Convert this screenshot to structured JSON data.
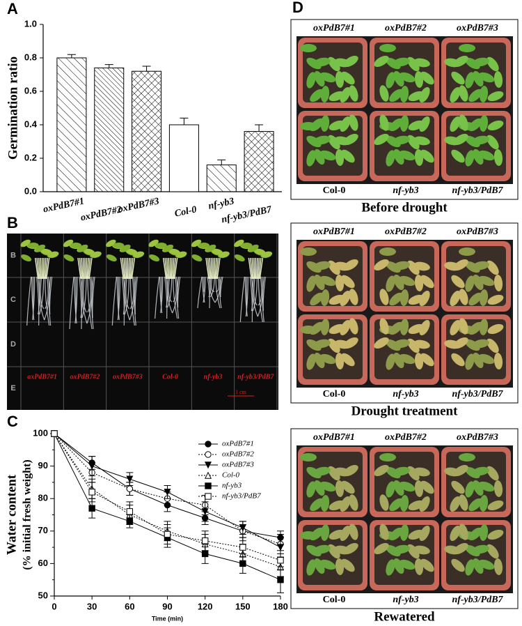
{
  "chart_data": [
    {
      "type": "bar",
      "panel": "A",
      "ylabel": "Germination ratio",
      "categories": [
        "oxPdB7#1",
        "oxPdB7#2",
        "oxPdB7#3",
        "Col-0",
        "nf-yb3",
        "nf-yb3/PdB7"
      ],
      "values": [
        0.8,
        0.74,
        0.72,
        0.4,
        0.16,
        0.36
      ],
      "errors": [
        0.02,
        0.02,
        0.03,
        0.04,
        0.03,
        0.04
      ],
      "patterns": [
        "back-diagonal",
        "back-diagonal-dense",
        "cross",
        "none",
        "back-diagonal",
        "cross"
      ],
      "color": "#000000",
      "ylim": [
        0,
        1
      ],
      "yticks": [
        {
          "value": 0,
          "label": "0.0"
        },
        0.2,
        0.4,
        0.6,
        0.8,
        {
          "value": 1,
          "label": "1.0"
        }
      ]
    },
    {
      "type": "line",
      "panel": "C",
      "ylabel": [
        "Water content",
        "(% initial fresh weight)"
      ],
      "xlabel": "Time (min)",
      "x": [
        0,
        30,
        60,
        90,
        120,
        150,
        180
      ],
      "series": [
        {
          "name": "oxPdB7#1",
          "color": "#000000",
          "marker": "circle",
          "dash": "solid",
          "values": [
            100,
            91,
            83,
            78,
            74,
            70,
            68
          ],
          "errors": [
            0,
            2,
            2,
            2,
            2,
            2,
            2
          ]
        },
        {
          "name": "oxPdB7#2",
          "color": "#000000",
          "marker": "circle-open",
          "dash": "dotted",
          "values": [
            100,
            88,
            83,
            80,
            78,
            70,
            66
          ],
          "errors": [
            0,
            3,
            2,
            2,
            3,
            3,
            3
          ]
        },
        {
          "name": "oxPdB7#3",
          "color": "#000000",
          "marker": "triangle-down",
          "dash": "solid",
          "values": [
            100,
            90,
            86,
            82,
            76,
            71,
            65
          ],
          "errors": [
            0,
            3,
            2,
            2,
            3,
            2,
            3
          ]
        },
        {
          "name": "Col-0",
          "color": "#000000",
          "marker": "triangle-open",
          "dash": "dotted",
          "values": [
            100,
            83,
            75,
            70,
            66,
            63,
            59
          ],
          "errors": [
            0,
            3,
            3,
            3,
            3,
            3,
            3
          ]
        },
        {
          "name": "nf-yb3",
          "color": "#000000",
          "marker": "square",
          "dash": "solid",
          "values": [
            100,
            77,
            73,
            68,
            63,
            60,
            55
          ],
          "errors": [
            0,
            3,
            2,
            3,
            3,
            3,
            4
          ]
        },
        {
          "name": "nf-yb3/PdB7",
          "color": "#000000",
          "marker": "square-open",
          "dash": "dotted",
          "values": [
            100,
            82,
            76,
            69,
            67,
            65,
            61
          ],
          "errors": [
            0,
            3,
            3,
            3,
            3,
            3,
            3
          ]
        }
      ],
      "xlim": [
        0,
        180
      ],
      "xticks": [
        0,
        30,
        60,
        90,
        120,
        150,
        180
      ],
      "ylim": [
        50,
        100
      ],
      "yticks": [
        50,
        55,
        60,
        65,
        70,
        75,
        80,
        85,
        90,
        95,
        100
      ]
    }
  ],
  "photo_b": {
    "panel": "B",
    "row_labels": [
      "B",
      "C",
      "D",
      "E"
    ],
    "labels": [
      "oxPdB7#1",
      "oxPdB7#2",
      "oxPdB7#3",
      "Col-0",
      "nf-yb3",
      "nf-yb3/PdB7"
    ],
    "scale": "1 cm"
  },
  "photo_d": {
    "panel": "D",
    "images": [
      {
        "top": [
          "oxPdB7#1",
          "oxPdB7#2",
          "oxPdB7#3"
        ],
        "bottom": [
          "Col-0",
          "nf-yb3",
          "nf-yb3/PdB7"
        ],
        "caption": "Before drought"
      },
      {
        "top": [
          "oxPdB7#1",
          "oxPdB7#2",
          "oxPdB7#3"
        ],
        "bottom": [
          "Col-0",
          "nf-yb3",
          "nf-yb3/PdB7"
        ],
        "caption": "Drought treatment"
      },
      {
        "top": [
          "oxPdB7#1",
          "oxPdB7#2",
          "oxPdB7#3"
        ],
        "bottom": [
          "Col-0",
          "nf-yb3",
          "nf-yb3/PdB7"
        ],
        "caption": "Rewatered"
      }
    ]
  }
}
